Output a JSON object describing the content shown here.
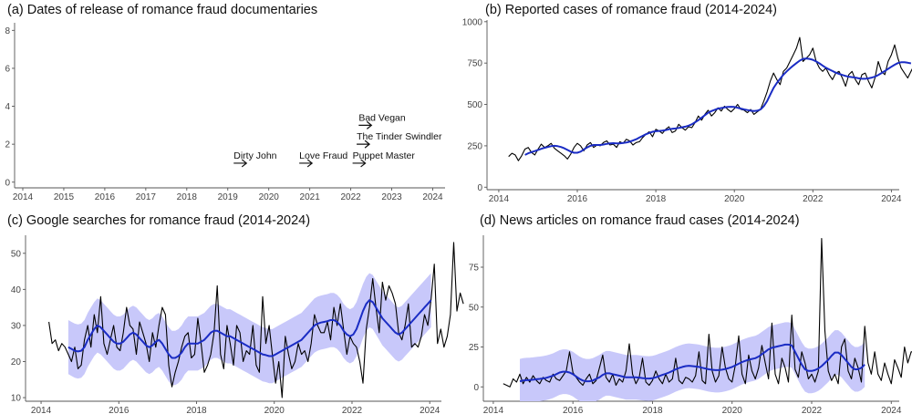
{
  "chart_data": [
    {
      "type": "scatter",
      "title": "(a) Dates of release of romance fraud documentaries",
      "xlabel": "",
      "ylabel": "",
      "xlim": [
        2013.8,
        2024.3
      ],
      "ylim": [
        -0.3,
        8.4
      ],
      "x_ticks": [
        2014,
        2015,
        2016,
        2017,
        2018,
        2019,
        2020,
        2021,
        2022,
        2023,
        2024
      ],
      "y_ticks": [
        0,
        2,
        4,
        6,
        8
      ],
      "grid": false,
      "annotations": [
        {
          "label": "Dirty John",
          "x": 2019.3,
          "y": 1
        },
        {
          "label": "Love Fraud",
          "x": 2020.9,
          "y": 1
        },
        {
          "label": "Puppet Master",
          "x": 2022.2,
          "y": 1
        },
        {
          "label": "The Tinder Swindler",
          "x": 2022.3,
          "y": 2
        },
        {
          "label": "Bad Vegan",
          "x": 2022.35,
          "y": 3
        }
      ]
    },
    {
      "type": "line",
      "title": "(b) Reported cases of romance fraud (2014-2024)",
      "xlabel": "",
      "ylabel": "",
      "xlim": [
        2013.7,
        2024.2
      ],
      "ylim": [
        -15,
        1010
      ],
      "x_ticks": [
        2014,
        2016,
        2018,
        2020,
        2022,
        2024
      ],
      "y_ticks": [
        0,
        250,
        500,
        750,
        1000
      ],
      "grid": false,
      "x_start": 2014.25,
      "x_step": 0.08333,
      "series": [
        {
          "name": "Monthly reported cases",
          "color": "#000000",
          "values": [
            185,
            205,
            195,
            160,
            190,
            230,
            240,
            210,
            195,
            230,
            260,
            240,
            250,
            265,
            235,
            220,
            205,
            190,
            170,
            200,
            240,
            265,
            250,
            220,
            255,
            270,
            240,
            255,
            250,
            270,
            280,
            255,
            260,
            240,
            275,
            265,
            290,
            280,
            255,
            270,
            275,
            300,
            320,
            335,
            305,
            350,
            340,
            325,
            350,
            365,
            330,
            340,
            380,
            360,
            345,
            365,
            360,
            390,
            430,
            405,
            440,
            465,
            430,
            450,
            480,
            460,
            490,
            470,
            455,
            475,
            500,
            470,
            465,
            450,
            470,
            440,
            455,
            470,
            520,
            575,
            640,
            690,
            650,
            620,
            700,
            720,
            760,
            800,
            840,
            905,
            760,
            780,
            800,
            840,
            760,
            720,
            700,
            720,
            680,
            650,
            690,
            700,
            660,
            610,
            680,
            700,
            650,
            620,
            680,
            690,
            640,
            600,
            660,
            760,
            700,
            680,
            760,
            800,
            860,
            780,
            720,
            690,
            660,
            700,
            740
          ]
        },
        {
          "name": "Smoothed trend",
          "color": "#1a2cc4",
          "values": [
            null,
            null,
            null,
            null,
            null,
            195,
            205,
            212,
            218,
            225,
            232,
            238,
            243,
            248,
            250,
            248,
            243,
            235,
            225,
            215,
            208,
            208,
            215,
            228,
            240,
            250,
            255,
            255,
            255,
            258,
            262,
            265,
            266,
            265,
            265,
            267,
            270,
            275,
            282,
            290,
            300,
            310,
            320,
            328,
            335,
            338,
            340,
            342,
            345,
            350,
            353,
            355,
            358,
            362,
            366,
            372,
            380,
            392,
            405,
            420,
            435,
            450,
            460,
            468,
            475,
            478,
            482,
            485,
            486,
            485,
            480,
            475,
            470,
            466,
            462,
            460,
            462,
            470,
            490,
            520,
            560,
            600,
            630,
            655,
            680,
            700,
            718,
            735,
            750,
            765,
            775,
            778,
            775,
            770,
            760,
            748,
            735,
            722,
            712,
            702,
            692,
            685,
            678,
            672,
            668,
            665,
            662,
            658,
            655,
            655,
            658,
            662,
            668,
            678,
            690,
            702,
            715,
            728,
            740,
            750,
            755,
            755,
            752,
            748,
            null,
            null
          ]
        },
        {
          "name": "Confidence band",
          "color": "#c8c8fa"
        }
      ]
    },
    {
      "type": "line",
      "title": "(c) Google searches for romance fraud (2014-2024)",
      "xlabel": "",
      "ylabel": "",
      "xlim": [
        2013.6,
        2024.3
      ],
      "ylim": [
        9,
        55
      ],
      "x_ticks": [
        2014,
        2016,
        2018,
        2020,
        2022,
        2024
      ],
      "y_ticks": [
        10,
        20,
        30,
        40,
        50
      ],
      "grid": false,
      "x_start": 2014.2,
      "x_step": 0.08333,
      "series": [
        {
          "name": "Monthly search interest",
          "color": "#000000",
          "values": [
            31,
            25,
            26,
            23,
            25,
            24,
            22,
            20,
            24,
            18,
            19,
            26,
            30,
            24,
            33,
            28,
            38,
            25,
            22,
            26,
            30,
            24,
            23,
            28,
            35,
            30,
            29,
            22,
            31,
            28,
            25,
            20,
            28,
            24,
            30,
            35,
            33,
            19,
            13,
            17,
            20,
            24,
            27,
            28,
            21,
            22,
            32,
            25,
            17,
            19,
            22,
            28,
            41,
            22,
            18,
            30,
            25,
            19,
            30,
            28,
            20,
            23,
            22,
            30,
            19,
            17,
            38,
            25,
            30,
            22,
            14,
            20,
            10,
            27,
            22,
            18,
            20,
            25,
            22,
            23,
            20,
            25,
            33,
            30,
            28,
            28,
            31,
            26,
            35,
            30,
            36,
            29,
            22,
            27,
            25,
            24,
            20,
            14,
            29,
            35,
            43,
            35,
            28,
            42,
            37,
            41,
            39,
            36,
            28,
            26,
            30,
            36,
            24,
            25,
            24,
            27,
            33,
            30,
            37,
            47,
            25,
            29,
            24,
            27,
            33,
            53,
            34,
            39,
            36
          ]
        },
        {
          "name": "Smoothed trend",
          "color": "#1a2cc4",
          "values": [
            null,
            null,
            null,
            null,
            null,
            null,
            24,
            23.5,
            23,
            22.8,
            23,
            24,
            26,
            27.5,
            29,
            30,
            29.5,
            28.5,
            27.5,
            26.5,
            25.5,
            25,
            25,
            25.5,
            26.5,
            27.5,
            28,
            27.5,
            26.5,
            25.5,
            24.5,
            24,
            24.5,
            25.5,
            26,
            25,
            23.5,
            22,
            21,
            21,
            21.5,
            22.5,
            24,
            25,
            25,
            25,
            25,
            25.5,
            26,
            27,
            28,
            28.5,
            28.5,
            28,
            27.5,
            27,
            27,
            26.5,
            26,
            25.5,
            25,
            24.5,
            24,
            23.5,
            23,
            22.5,
            22,
            21.8,
            21.5,
            21.5,
            22,
            22.5,
            23,
            23.5,
            24,
            24.5,
            25,
            25.5,
            26,
            27,
            28,
            29,
            30,
            30.5,
            30.8,
            31,
            31.2,
            31.5,
            31.5,
            31,
            30,
            28.5,
            27.5,
            27,
            27.5,
            29,
            31.5,
            34,
            36,
            37,
            36.5,
            35,
            33.5,
            32,
            31,
            30,
            29,
            28,
            27.5,
            28,
            29,
            30,
            31,
            32,
            33,
            34,
            35,
            36,
            37,
            null,
            null,
            null,
            null,
            null,
            null,
            null,
            null,
            null,
            null
          ]
        },
        {
          "name": "Confidence band",
          "color": "#c8c8fa"
        }
      ]
    },
    {
      "type": "line",
      "title": "(d) News articles on romance fraud cases (2014-2024)",
      "xlabel": "",
      "ylabel": "",
      "xlim": [
        2013.75,
        2024.2
      ],
      "ylim": [
        -9,
        95
      ],
      "x_ticks": [
        2014,
        2016,
        2018,
        2020,
        2022,
        2024
      ],
      "y_ticks": [
        0,
        25,
        50,
        75
      ],
      "grid": false,
      "x_start": 2014.25,
      "x_step": 0.08333,
      "series": [
        {
          "name": "Monthly news articles",
          "color": "#000000",
          "values": [
            2,
            1,
            0,
            5,
            3,
            8,
            2,
            6,
            3,
            7,
            4,
            2,
            6,
            4,
            3,
            8,
            5,
            4,
            7,
            10,
            22,
            9,
            6,
            3,
            1,
            5,
            8,
            2,
            4,
            12,
            20,
            6,
            3,
            8,
            1,
            5,
            3,
            10,
            27,
            8,
            2,
            6,
            18,
            3,
            1,
            4,
            10,
            5,
            2,
            8,
            3,
            5,
            18,
            4,
            2,
            6,
            5,
            3,
            7,
            22,
            4,
            2,
            33,
            10,
            3,
            7,
            25,
            12,
            5,
            3,
            14,
            32,
            8,
            2,
            20,
            10,
            5,
            12,
            26,
            15,
            5,
            40,
            8,
            2,
            18,
            12,
            3,
            45,
            11,
            6,
            22,
            15,
            5,
            8,
            3,
            10,
            93,
            35,
            10,
            4,
            8,
            2,
            25,
            30,
            10,
            5,
            18,
            12,
            3,
            38,
            15,
            8,
            22,
            8,
            4,
            15,
            8,
            2,
            17,
            12,
            6,
            25,
            15,
            22,
            22
          ]
        },
        {
          "name": "Smoothed trend",
          "color": "#1a2cc4",
          "values": [
            null,
            null,
            null,
            null,
            null,
            3.5,
            4,
            4.2,
            4.3,
            4.5,
            4.8,
            5,
            5.3,
            5.7,
            6.3,
            7,
            8,
            9,
            9.5,
            9.5,
            9,
            8,
            6.5,
            5,
            4,
            3.5,
            3.5,
            4,
            5,
            6,
            7.5,
            8.5,
            8.5,
            8,
            7.5,
            7,
            6.5,
            6,
            6,
            6,
            6,
            5.8,
            5.5,
            5.3,
            5.2,
            5.4,
            6,
            6.8,
            7.5,
            8.2,
            9,
            10,
            11,
            11.8,
            12.5,
            13,
            13.2,
            13,
            12.8,
            12.5,
            12,
            11.5,
            11,
            10.7,
            10.5,
            10.5,
            10.8,
            11.2,
            11.8,
            12.5,
            13.5,
            14.5,
            15.5,
            16.3,
            17,
            17.5,
            18,
            19,
            20.5,
            22,
            23.5,
            24.5,
            25,
            25.5,
            26,
            26.5,
            26.5,
            26,
            22,
            18,
            14,
            11,
            10,
            10,
            10.5,
            11.5,
            13,
            15,
            17,
            19.5,
            21.5,
            21.5,
            20,
            17.5,
            15,
            12.5,
            11,
            11,
            12,
            14,
            null,
            null,
            null,
            null,
            null,
            null,
            null,
            null,
            null,
            null,
            null,
            null,
            null,
            null,
            null
          ]
        },
        {
          "name": "Confidence band",
          "color": "#c8c8fa"
        }
      ]
    }
  ]
}
